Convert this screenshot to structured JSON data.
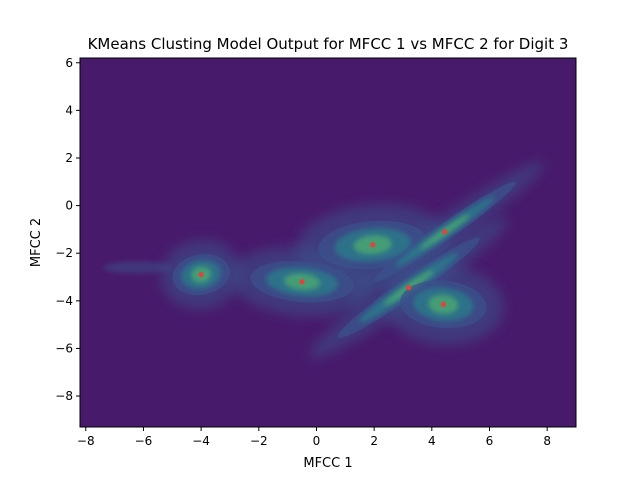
{
  "chart_data": {
    "type": "heatmap",
    "title": "KMeans Clusting Model Output for MFCC 1 vs MFCC 2 for Digit 3",
    "xlabel": "MFCC 1",
    "ylabel": "MFCC 2",
    "xlim": [
      -8.2,
      9.0
    ],
    "ylim": [
      -9.3,
      6.2
    ],
    "xticks": [
      -8,
      -6,
      -4,
      -2,
      0,
      2,
      4,
      6,
      8
    ],
    "yticks": [
      -8,
      -6,
      -4,
      -2,
      0,
      2,
      4,
      6
    ],
    "grid": false,
    "legend": "none",
    "colors": {
      "background": "#481a6c",
      "density_low": "#3b528b",
      "density_mid": "#21918c",
      "density_high": "#5ec962",
      "density_peak": "#b5de2b",
      "centroid": "#e0443a"
    },
    "centroids": [
      {
        "x": -4.0,
        "y": -2.9
      },
      {
        "x": -0.5,
        "y": -3.2
      },
      {
        "x": 1.95,
        "y": -1.65
      },
      {
        "x": 4.45,
        "y": -1.1
      },
      {
        "x": 3.2,
        "y": -3.45
      },
      {
        "x": 4.4,
        "y": -4.15
      }
    ],
    "cluster_ellipses": [
      {
        "cx": -4.0,
        "cy": -2.9,
        "rx": 1.0,
        "ry": 0.85,
        "angle": 10
      },
      {
        "cx": -0.5,
        "cy": -3.2,
        "rx": 1.8,
        "ry": 0.85,
        "angle": -5
      },
      {
        "cx": 1.95,
        "cy": -1.65,
        "rx": 1.9,
        "ry": 1.0,
        "angle": 5
      },
      {
        "cx": 4.45,
        "cy": -1.1,
        "rx": 3.0,
        "ry": 0.35,
        "angle": 35
      },
      {
        "cx": 3.2,
        "cy": -3.45,
        "rx": 3.0,
        "ry": 0.4,
        "angle": 35
      },
      {
        "cx": 4.4,
        "cy": -4.15,
        "rx": 1.5,
        "ry": 1.0,
        "angle": -5
      }
    ]
  }
}
